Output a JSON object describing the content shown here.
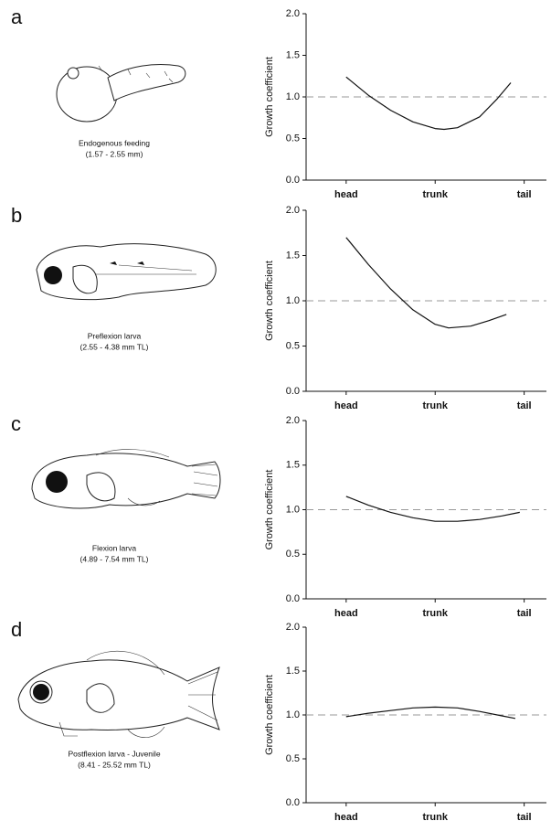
{
  "chart_data": [
    {
      "type": "line",
      "panel": "a",
      "caption": [
        "Endogenous feeding",
        "(1.57 - 2.55 mm)"
      ],
      "ylabel": "Growth coefficient",
      "x": [
        1.0,
        1.25,
        1.5,
        1.75,
        2.0,
        2.1,
        2.25,
        2.5,
        2.7,
        2.85
      ],
      "values": [
        1.24,
        1.02,
        0.84,
        0.7,
        0.62,
        0.61,
        0.63,
        0.76,
        0.98,
        1.17
      ],
      "color": "#111111",
      "reference_line": 1,
      "reference_color": "#999999",
      "xlim": [
        0.55,
        3.25
      ],
      "xticks": [
        {
          "value": 1,
          "label": "head"
        },
        {
          "value": 2,
          "label": "trunk"
        },
        {
          "value": 3,
          "label": "tail"
        }
      ],
      "ylim": [
        0,
        2
      ],
      "yticks": [
        {
          "value": 0,
          "label": "0.0"
        },
        0.5,
        {
          "value": 1,
          "label": "1.0"
        },
        1.5,
        {
          "value": 2,
          "label": "2.0"
        }
      ]
    },
    {
      "type": "line",
      "panel": "b",
      "caption": [
        "Preflexion larva",
        "(2.55 - 4.38 mm TL)"
      ],
      "ylabel": "Growth coefficient",
      "x": [
        1.0,
        1.25,
        1.5,
        1.75,
        2.0,
        2.15,
        2.4,
        2.6,
        2.8
      ],
      "values": [
        1.7,
        1.4,
        1.13,
        0.9,
        0.74,
        0.7,
        0.72,
        0.78,
        0.85
      ],
      "color": "#111111",
      "reference_line": 1,
      "reference_color": "#999999",
      "xlim": [
        0.55,
        3.25
      ],
      "xticks": [
        {
          "value": 1,
          "label": "head"
        },
        {
          "value": 2,
          "label": "trunk"
        },
        {
          "value": 3,
          "label": "tail"
        }
      ],
      "ylim": [
        0,
        2
      ],
      "yticks": [
        {
          "value": 0,
          "label": "0.0"
        },
        0.5,
        {
          "value": 1,
          "label": "1.0"
        },
        1.5,
        {
          "value": 2,
          "label": "2.0"
        }
      ]
    },
    {
      "type": "line",
      "panel": "c",
      "caption": [
        "Flexion larva",
        "(4.89 - 7.54 mm TL)"
      ],
      "ylabel": "Growth coefficient",
      "x": [
        1.0,
        1.25,
        1.5,
        1.75,
        2.0,
        2.25,
        2.5,
        2.75,
        2.95
      ],
      "values": [
        1.15,
        1.05,
        0.97,
        0.91,
        0.87,
        0.87,
        0.89,
        0.93,
        0.97
      ],
      "color": "#111111",
      "reference_line": 1,
      "reference_color": "#999999",
      "xlim": [
        0.55,
        3.25
      ],
      "xticks": [
        {
          "value": 1,
          "label": "head"
        },
        {
          "value": 2,
          "label": "trunk"
        },
        {
          "value": 3,
          "label": "tail"
        }
      ],
      "ylim": [
        0,
        2
      ],
      "yticks": [
        {
          "value": 0,
          "label": "0.0"
        },
        0.5,
        {
          "value": 1,
          "label": "1.0"
        },
        1.5,
        {
          "value": 2,
          "label": "2.0"
        }
      ]
    },
    {
      "type": "line",
      "panel": "d",
      "caption": [
        "Postflexion larva - Juvenile",
        "(8.41 - 25.52 mm TL)"
      ],
      "ylabel": "Growth coefficient",
      "x": [
        1.0,
        1.25,
        1.5,
        1.75,
        2.0,
        2.25,
        2.5,
        2.75,
        2.9
      ],
      "values": [
        0.98,
        1.02,
        1.05,
        1.08,
        1.09,
        1.08,
        1.04,
        0.99,
        0.96
      ],
      "color": "#111111",
      "reference_line": 1,
      "reference_color": "#999999",
      "xlim": [
        0.55,
        3.25
      ],
      "xticks": [
        {
          "value": 1,
          "label": "head"
        },
        {
          "value": 2,
          "label": "trunk"
        },
        {
          "value": 3,
          "label": "tail"
        }
      ],
      "ylim": [
        0,
        2
      ],
      "yticks": [
        {
          "value": 0,
          "label": "0.0"
        },
        0.5,
        {
          "value": 1,
          "label": "1.0"
        },
        1.5,
        {
          "value": 2,
          "label": "2.0"
        }
      ]
    }
  ]
}
